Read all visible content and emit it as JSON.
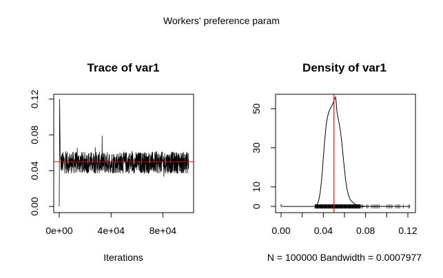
{
  "super_title": "Workers' preference param",
  "chart_data": [
    {
      "type": "line",
      "title": "Trace of var1",
      "xlabel": "Iterations",
      "ylabel": "",
      "x_ticks": [
        0,
        40000,
        80000
      ],
      "x_tick_labels": [
        "0e+00",
        "4e+04",
        "8e+04"
      ],
      "y_ticks": [
        0.0,
        0.04,
        0.08,
        0.12
      ],
      "y_tick_labels": [
        "0.00",
        "0.04",
        "0.08",
        "0.12"
      ],
      "xlim": [
        0,
        100000
      ],
      "ylim": [
        0,
        0.12
      ],
      "reference_line_y": 0.05,
      "reference_color": "#ff0000",
      "series_color": "#000000",
      "trace_summary": {
        "iterations": 100000,
        "start_value": 0.0,
        "early_max": 0.12,
        "typical_center": 0.049,
        "typical_low": 0.035,
        "typical_high": 0.07
      },
      "grid": false
    },
    {
      "type": "line",
      "title": "Density of var1",
      "xlabel": "N = 100000   Bandwidth = 0.0007977",
      "ylabel": "",
      "x_ticks": [
        0.0,
        0.04,
        0.08,
        0.12
      ],
      "x_tick_labels": [
        "0.00",
        "0.04",
        "0.08",
        "0.12"
      ],
      "y_ticks": [
        0,
        10,
        30,
        50
      ],
      "y_tick_labels": [
        "0",
        "10",
        "30",
        "50"
      ],
      "xlim": [
        0,
        0.122
      ],
      "ylim": [
        0,
        56
      ],
      "reference_line_x": 0.05,
      "reference_color": "#ff0000",
      "x": [
        0.032,
        0.033,
        0.034,
        0.035,
        0.036,
        0.037,
        0.038,
        0.039,
        0.04,
        0.041,
        0.042,
        0.043,
        0.044,
        0.045,
        0.046,
        0.047,
        0.048,
        0.049,
        0.05,
        0.0505,
        0.051,
        0.0515,
        0.052,
        0.0525,
        0.053,
        0.054,
        0.055,
        0.056,
        0.057,
        0.058,
        0.059,
        0.06,
        0.061,
        0.062,
        0.063,
        0.064,
        0.065,
        0.066,
        0.068,
        0.07,
        0.072,
        0.074,
        0.076,
        0.08,
        0.09,
        0.1,
        0.11,
        0.122
      ],
      "y": [
        0.2,
        0.5,
        1.0,
        2.0,
        4.0,
        7.0,
        12.0,
        18.0,
        25.0,
        32.0,
        38.0,
        43.0,
        46.0,
        48.0,
        49.5,
        50.5,
        51.5,
        52.5,
        54.0,
        55.0,
        55.5,
        56.0,
        54.5,
        51.0,
        48.0,
        45.0,
        42.5,
        39.0,
        35.0,
        30.0,
        24.0,
        19.0,
        14.0,
        10.0,
        7.5,
        5.5,
        4.0,
        3.0,
        2.0,
        1.2,
        0.7,
        0.4,
        0.2,
        0.1,
        0.05,
        0.02,
        0.01,
        0.0
      ],
      "rug_range": [
        0.032,
        0.122
      ],
      "rug_dense_range": [
        0.032,
        0.075
      ],
      "grid": false
    }
  ]
}
